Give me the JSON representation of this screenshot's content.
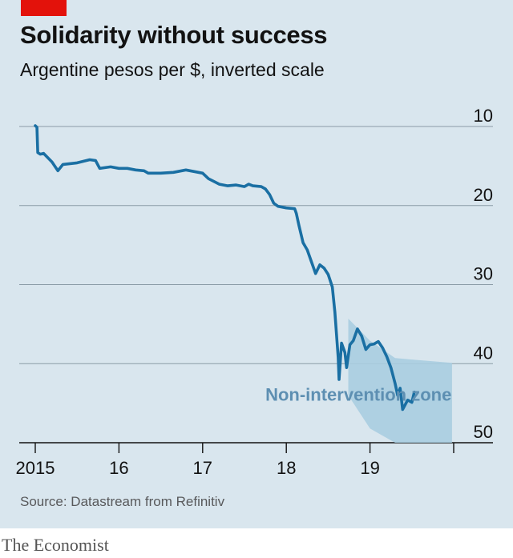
{
  "header": {
    "title": "Solidarity without success",
    "subtitle": "Argentine pesos per $, inverted scale"
  },
  "footer": {
    "source": "Source: Datastream from Refinitiv",
    "brand": "The Economist"
  },
  "colors": {
    "background": "#d9e6ee",
    "line": "#1a6fa3",
    "zone": "#a9cde0",
    "accent": "#e3120b"
  },
  "chart_data": {
    "type": "line",
    "title": "Solidarity without success",
    "subtitle": "Argentine pesos per $, inverted scale",
    "xlabel": "",
    "ylabel": "",
    "y_inverted": true,
    "ylim": [
      10,
      50
    ],
    "xlim": [
      2014.97,
      2020.0
    ],
    "y_ticks": [
      10,
      20,
      30,
      40,
      50
    ],
    "x_ticks": [
      {
        "value": 2015.0,
        "label": "2015"
      },
      {
        "value": 2016.0,
        "label": "16"
      },
      {
        "value": 2017.0,
        "label": "17"
      },
      {
        "value": 2018.0,
        "label": "18"
      },
      {
        "value": 2019.0,
        "label": "19"
      }
    ],
    "grid": "horizontal",
    "annotations": [
      {
        "text": "Non-intervention zone",
        "x": 2017.75,
        "y": 44.7
      }
    ],
    "zone": {
      "name": "Non-intervention zone",
      "upper": [
        [
          2018.74,
          34.3
        ],
        [
          2019.0,
          37.1
        ],
        [
          2019.3,
          39.3
        ],
        [
          2019.98,
          39.9
        ]
      ],
      "lower": [
        [
          2018.74,
          44.0
        ],
        [
          2019.0,
          48.2
        ],
        [
          2019.3,
          50.0
        ],
        [
          2019.98,
          50.0
        ]
      ]
    },
    "series": [
      {
        "points": [
          [
            2015.0,
            9.9
          ],
          [
            2015.02,
            10.1
          ],
          [
            2015.03,
            13.3
          ],
          [
            2015.06,
            13.5
          ],
          [
            2015.1,
            13.4
          ],
          [
            2015.2,
            14.5
          ],
          [
            2015.27,
            15.6
          ],
          [
            2015.33,
            14.8
          ],
          [
            2015.5,
            14.6
          ],
          [
            2015.65,
            14.2
          ],
          [
            2015.72,
            14.3
          ],
          [
            2015.77,
            15.3
          ],
          [
            2015.9,
            15.1
          ],
          [
            2016.0,
            15.3
          ],
          [
            2016.1,
            15.3
          ],
          [
            2016.2,
            15.5
          ],
          [
            2016.3,
            15.6
          ],
          [
            2016.35,
            15.9
          ],
          [
            2016.5,
            15.9
          ],
          [
            2016.65,
            15.8
          ],
          [
            2016.8,
            15.5
          ],
          [
            2016.9,
            15.7
          ],
          [
            2017.0,
            15.9
          ],
          [
            2017.07,
            16.6
          ],
          [
            2017.2,
            17.3
          ],
          [
            2017.3,
            17.5
          ],
          [
            2017.4,
            17.4
          ],
          [
            2017.5,
            17.6
          ],
          [
            2017.55,
            17.3
          ],
          [
            2017.6,
            17.5
          ],
          [
            2017.7,
            17.6
          ],
          [
            2017.75,
            17.9
          ],
          [
            2017.8,
            18.6
          ],
          [
            2017.85,
            19.7
          ],
          [
            2017.9,
            20.1
          ],
          [
            2018.0,
            20.3
          ],
          [
            2018.1,
            20.4
          ],
          [
            2018.12,
            21.0
          ],
          [
            2018.15,
            22.5
          ],
          [
            2018.2,
            24.7
          ],
          [
            2018.25,
            25.6
          ],
          [
            2018.3,
            27.1
          ],
          [
            2018.35,
            28.6
          ],
          [
            2018.4,
            27.5
          ],
          [
            2018.45,
            27.9
          ],
          [
            2018.5,
            28.7
          ],
          [
            2018.55,
            30.3
          ],
          [
            2018.58,
            33.5
          ],
          [
            2018.62,
            39.2
          ],
          [
            2018.63,
            42.0
          ],
          [
            2018.66,
            37.4
          ],
          [
            2018.7,
            38.6
          ],
          [
            2018.72,
            40.5
          ],
          [
            2018.76,
            37.6
          ],
          [
            2018.8,
            37.1
          ],
          [
            2018.85,
            35.6
          ],
          [
            2018.9,
            36.5
          ],
          [
            2018.95,
            38.2
          ],
          [
            2019.0,
            37.6
          ],
          [
            2019.05,
            37.5
          ],
          [
            2019.1,
            37.2
          ],
          [
            2019.15,
            38.0
          ],
          [
            2019.2,
            39.1
          ],
          [
            2019.25,
            40.5
          ],
          [
            2019.3,
            42.5
          ],
          [
            2019.33,
            44.0
          ],
          [
            2019.36,
            43.1
          ],
          [
            2019.39,
            45.8
          ],
          [
            2019.45,
            44.6
          ],
          [
            2019.5,
            44.9
          ],
          [
            2019.53,
            43.6
          ]
        ]
      }
    ]
  }
}
